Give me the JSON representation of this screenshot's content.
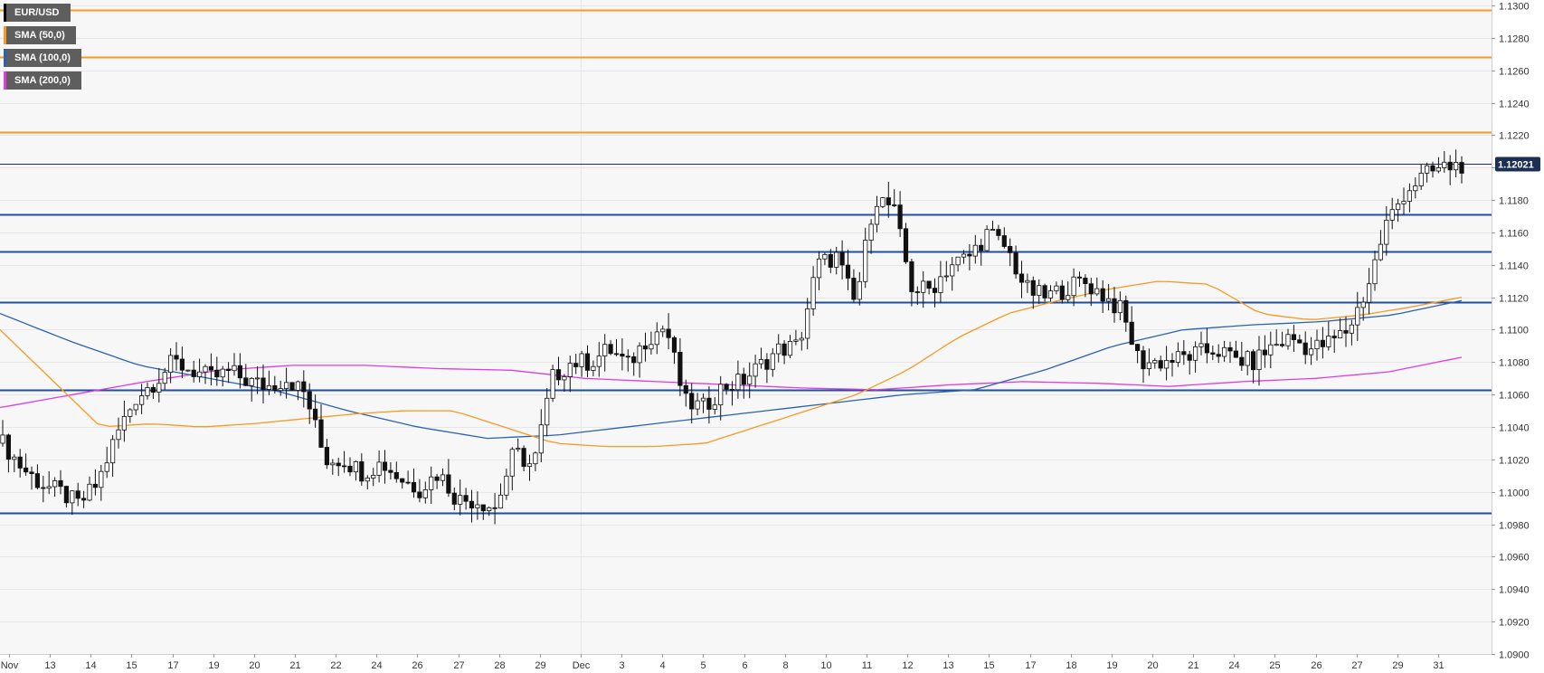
{
  "legend": [
    {
      "label": "EUR/USD",
      "color": "#000000"
    },
    {
      "label": "SMA (50,0)",
      "color": "#f59a23"
    },
    {
      "label": "SMA (100,0)",
      "color": "#2a62b0"
    },
    {
      "label": "SMA (200,0)",
      "color": "#e03ce0"
    }
  ],
  "current_price": {
    "label": "1.12021",
    "value": 1.12021,
    "color": "#1b2f56"
  },
  "chart_data": {
    "type": "candlestick",
    "symbol": "EUR/USD",
    "ylim": [
      1.09,
      1.13
    ],
    "y_ticks": [
      "1.0900",
      "1.0920",
      "1.0940",
      "1.0960",
      "1.0980",
      "1.1000",
      "1.1020",
      "1.1040",
      "1.1060",
      "1.1080",
      "1.1100",
      "1.1120",
      "1.1140",
      "1.1160",
      "1.1180",
      "1.1200",
      "1.1220",
      "1.1240",
      "1.1260",
      "1.1280",
      "1.1300"
    ],
    "x_ticks": [
      "Nov",
      "13",
      "14",
      "15",
      "17",
      "19",
      "20",
      "21",
      "22",
      "24",
      "26",
      "27",
      "28",
      "29",
      "Dec",
      "3",
      "4",
      "5",
      "6",
      "8",
      "10",
      "11",
      "12",
      "13",
      "15",
      "17",
      "18",
      "19",
      "20",
      "21",
      "24",
      "25",
      "26",
      "27",
      "29",
      "31"
    ],
    "grid": true,
    "horizontal_levels": [
      {
        "value": 1.1297,
        "color": "#f59a23"
      },
      {
        "value": 1.1268,
        "color": "#f59a23"
      },
      {
        "value": 1.1222,
        "color": "#f59a23"
      },
      {
        "value": 1.1171,
        "color": "#1f4f9e"
      },
      {
        "value": 1.1148,
        "color": "#1f4f9e"
      },
      {
        "value": 1.1117,
        "color": "#1f4f9e"
      },
      {
        "value": 1.1063,
        "color": "#1f4f9e"
      },
      {
        "value": 1.0987,
        "color": "#1f4f9e"
      }
    ],
    "anchors": [
      1.103,
      1.1015,
      1.1005,
      1.1,
      1.0992,
      1.1005,
      1.1035,
      1.1058,
      1.1068,
      1.108,
      1.1075,
      1.107,
      1.1074,
      1.1068,
      1.1065,
      1.107,
      1.106,
      1.102,
      1.102,
      1.1012,
      1.1018,
      1.1008,
      1.1002,
      1.1012,
      1.0995,
      1.0995,
      1.099,
      1.1025,
      1.1015,
      1.107,
      1.108,
      1.108,
      1.1088,
      1.1078,
      1.1095,
      1.1102,
      1.1055,
      1.1052,
      1.1065,
      1.1068,
      1.1078,
      1.1088,
      1.109,
      1.114,
      1.1145,
      1.1115,
      1.1182,
      1.1175,
      1.1125,
      1.1125,
      1.114,
      1.1145,
      1.116,
      1.115,
      1.1125,
      1.112,
      1.1125,
      1.113,
      1.1122,
      1.1112,
      1.108,
      1.108,
      1.1082,
      1.1085,
      1.1088,
      1.1082,
      1.108,
      1.109,
      1.1095,
      1.1088,
      1.1092,
      1.11,
      1.1125,
      1.1165,
      1.1185,
      1.1195,
      1.12,
      1.1202
    ],
    "sma50": [
      1.11,
      1.107,
      1.104,
      1.1042,
      1.104,
      1.1042,
      1.1045,
      1.1048,
      1.105,
      1.105,
      1.104,
      1.103,
      1.1028,
      1.1028,
      1.103,
      1.104,
      1.105,
      1.106,
      1.1075,
      1.1095,
      1.111,
      1.1118,
      1.1125,
      1.113,
      1.1128,
      1.111,
      1.1106,
      1.1109,
      1.1114,
      1.112
    ],
    "sma100": [
      1.111,
      1.1093,
      1.1078,
      1.107,
      1.1062,
      1.105,
      1.104,
      1.1033,
      1.1035,
      1.104,
      1.1045,
      1.105,
      1.1055,
      1.106,
      1.1063,
      1.1075,
      1.109,
      1.11,
      1.1103,
      1.1105,
      1.1109,
      1.1118
    ],
    "sma200": [
      1.1052,
      1.106,
      1.1068,
      1.1075,
      1.1078,
      1.1078,
      1.1076,
      1.1075,
      1.107,
      1.1068,
      1.1066,
      1.1064,
      1.1063,
      1.1066,
      1.1068,
      1.1067,
      1.1065,
      1.1068,
      1.107,
      1.1074,
      1.1083
    ]
  }
}
